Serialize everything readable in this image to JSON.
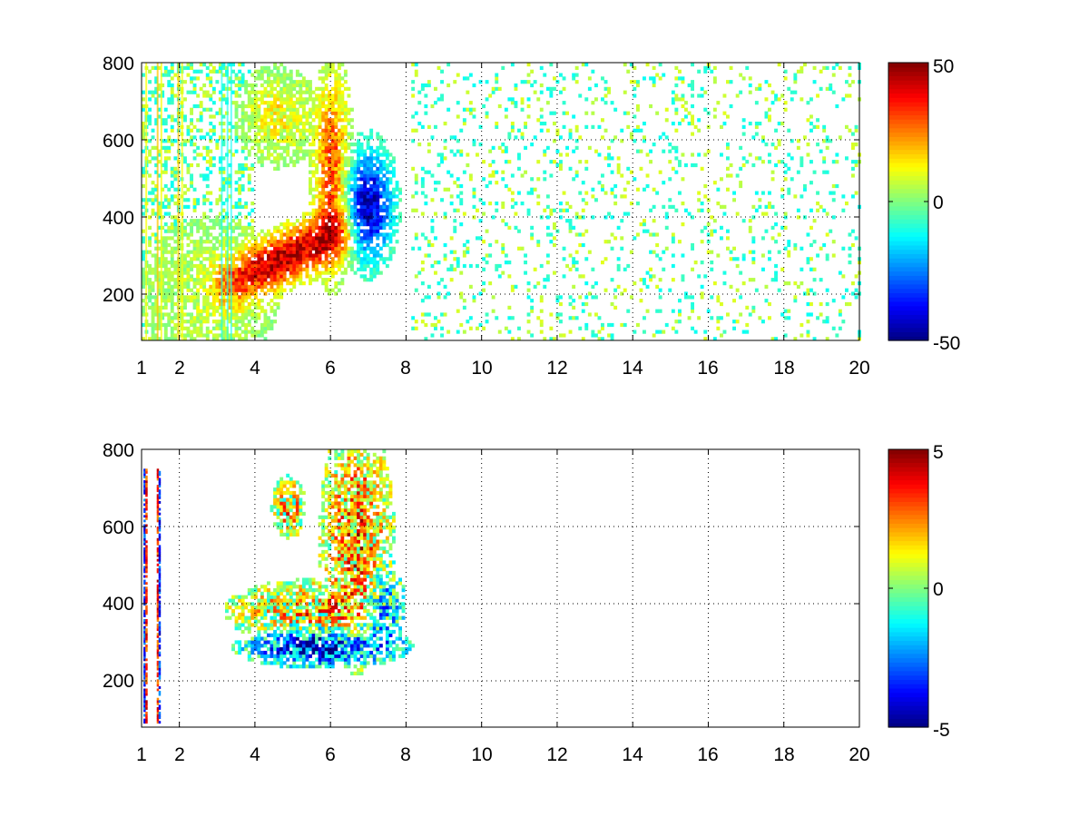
{
  "figure": {
    "background": "#ffffff"
  },
  "chart_data": [
    {
      "type": "heatmap",
      "title": "",
      "xlabel": "",
      "ylabel": "",
      "xlim": [
        1,
        20
      ],
      "ylim": [
        80,
        800
      ],
      "x_ticks": [
        1,
        2,
        4,
        6,
        8,
        10,
        12,
        14,
        16,
        18,
        20
      ],
      "y_ticks": [
        200,
        400,
        600,
        800
      ],
      "grid": true,
      "colormap": "jet",
      "colorbar": {
        "range": [
          -50,
          50
        ],
        "ticks": [
          50,
          0,
          -50
        ]
      },
      "structure": {
        "diagonal_ridge": {
          "from": [
            3.4,
            230
          ],
          "to": [
            6.2,
            360
          ],
          "sign": "positive",
          "peak": 45
        },
        "upper_band": {
          "x": [
            5.5,
            6.6
          ],
          "y": [
            300,
            780
          ],
          "sign": "positive",
          "peak": 30
        },
        "negative_core": {
          "x": [
            6.5,
            7.6
          ],
          "y": [
            250,
            600
          ],
          "sign": "negative",
          "peak": -45
        },
        "upper_lobe": {
          "x": [
            3.8,
            5.3
          ],
          "y": [
            560,
            760
          ],
          "sign": "positive",
          "peak": 12
        },
        "background": {
          "x": [
            1,
            20
          ],
          "y": [
            80,
            800
          ],
          "sparse": true,
          "range": [
            -14,
            10
          ]
        }
      }
    },
    {
      "type": "heatmap",
      "title": "",
      "xlabel": "",
      "ylabel": "",
      "xlim": [
        1,
        20
      ],
      "ylim": [
        80,
        800
      ],
      "x_ticks": [
        1,
        2,
        4,
        6,
        8,
        10,
        12,
        14,
        16,
        18,
        20
      ],
      "y_ticks": [
        200,
        400,
        600,
        800
      ],
      "grid": true,
      "colormap": "jet",
      "colorbar": {
        "range": [
          -5,
          5
        ],
        "ticks": [
          5,
          0,
          -5
        ]
      },
      "structure": {
        "lower_negative_band": {
          "from": [
            3.8,
            250
          ],
          "to": [
            7.3,
            320
          ],
          "sign": "negative",
          "peak": -4.5
        },
        "upper_positive_band": {
          "from": [
            3.8,
            340
          ],
          "to": [
            6.5,
            440
          ],
          "sign": "positive",
          "peak": 1.5
        },
        "upper_region": {
          "x": [
            5.8,
            7.7
          ],
          "y": [
            300,
            790
          ],
          "sign": "positive",
          "peak": 2.5
        },
        "upper_lobe": {
          "x": [
            4.6,
            5.2
          ],
          "y": [
            600,
            700
          ],
          "sign": "positive",
          "peak": 1.5
        },
        "vertical_stripes": {
          "x": [
            1.05,
            1.45
          ],
          "y": [
            90,
            750
          ],
          "values": [
            -4.5,
            4.5
          ]
        }
      }
    }
  ]
}
